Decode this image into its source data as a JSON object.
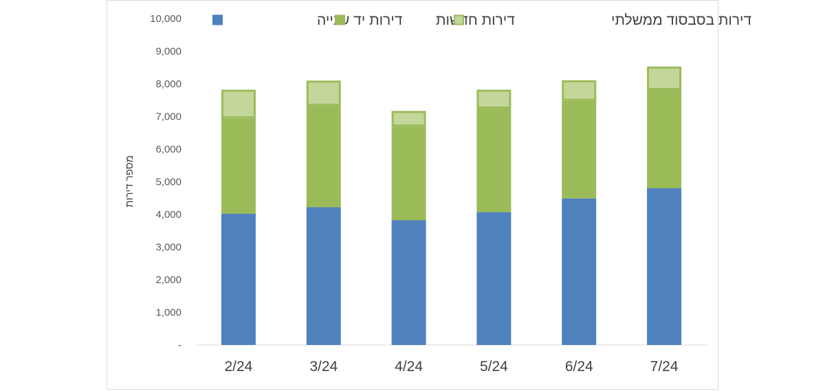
{
  "chart_data": {
    "type": "bar",
    "stacked": true,
    "title": "",
    "xlabel": "",
    "ylabel": "מספר דירות",
    "ylim": [
      0,
      10000
    ],
    "yticks": [
      0,
      1000,
      2000,
      3000,
      4000,
      5000,
      6000,
      7000,
      8000,
      9000,
      10000
    ],
    "ytick_labels": [
      "-",
      "1,000",
      "2,000",
      "3,000",
      "4,000",
      "5,000",
      "6,000",
      "7,000",
      "8,000",
      "9,000",
      "10,000"
    ],
    "categories": [
      "2/24",
      "3/24",
      "4/24",
      "5/24",
      "6/24",
      "7/24"
    ],
    "legend_position": "top",
    "grid": false,
    "series": [
      {
        "name": "דירות יד שנייה",
        "color": "#4f81bd",
        "values": [
          4020,
          4220,
          3820,
          4070,
          4490,
          4800
        ]
      },
      {
        "name": "דירות חדשות",
        "color": "#9bbb59",
        "values": [
          2920,
          3110,
          2870,
          3170,
          2990,
          3010
        ]
      },
      {
        "name": "דירות בסבסוד ממשלתי",
        "color": "#c4d79b",
        "border": "#9bbb59",
        "values": [
          880,
          770,
          480,
          580,
          630,
          720
        ]
      }
    ]
  }
}
